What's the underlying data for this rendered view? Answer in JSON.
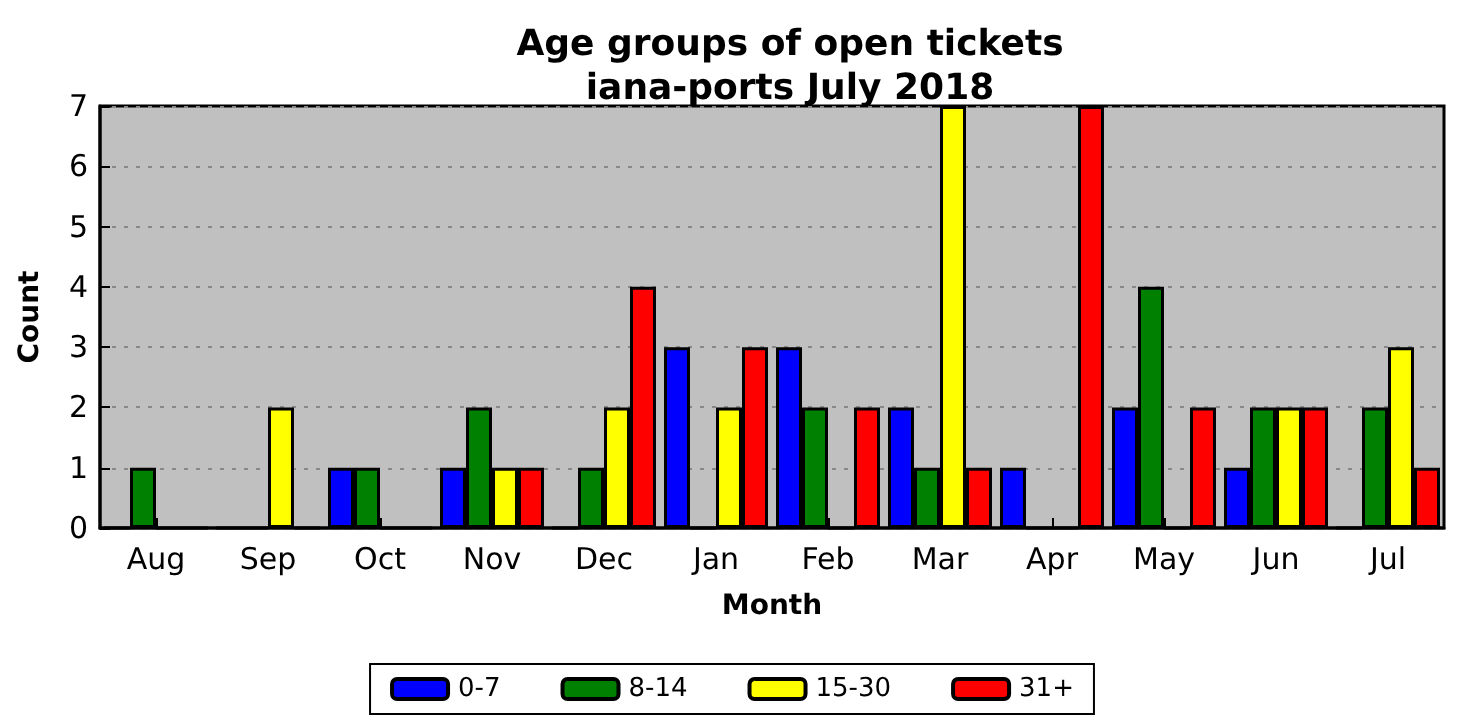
{
  "chart_data": {
    "type": "bar",
    "title": "Age groups of open tickets\niana-ports July 2018",
    "xlabel": "Month",
    "ylabel": "Count",
    "categories": [
      "Aug",
      "Sep",
      "Oct",
      "Nov",
      "Dec",
      "Jan",
      "Feb",
      "Mar",
      "Apr",
      "May",
      "Jun",
      "Jul"
    ],
    "series": [
      {
        "name": "0-7",
        "color": "#0000ff",
        "values": [
          0,
          0,
          1,
          1,
          0,
          3,
          3,
          2,
          1,
          2,
          1,
          0
        ]
      },
      {
        "name": "8-14",
        "color": "#008000",
        "values": [
          1,
          0,
          1,
          2,
          1,
          0,
          2,
          1,
          0,
          4,
          2,
          2
        ]
      },
      {
        "name": "15-30",
        "color": "#ffff00",
        "values": [
          0,
          2,
          0,
          1,
          2,
          2,
          0,
          7,
          0,
          0,
          2,
          3
        ]
      },
      {
        "name": "31+",
        "color": "#ff0000",
        "values": [
          0,
          0,
          0,
          1,
          4,
          3,
          2,
          1,
          7,
          2,
          2,
          1
        ]
      }
    ],
    "ylim": [
      0,
      7
    ],
    "yticks": [
      0,
      1,
      2,
      3,
      4,
      5,
      6,
      7
    ],
    "grid": "y",
    "legend": "bottom"
  }
}
